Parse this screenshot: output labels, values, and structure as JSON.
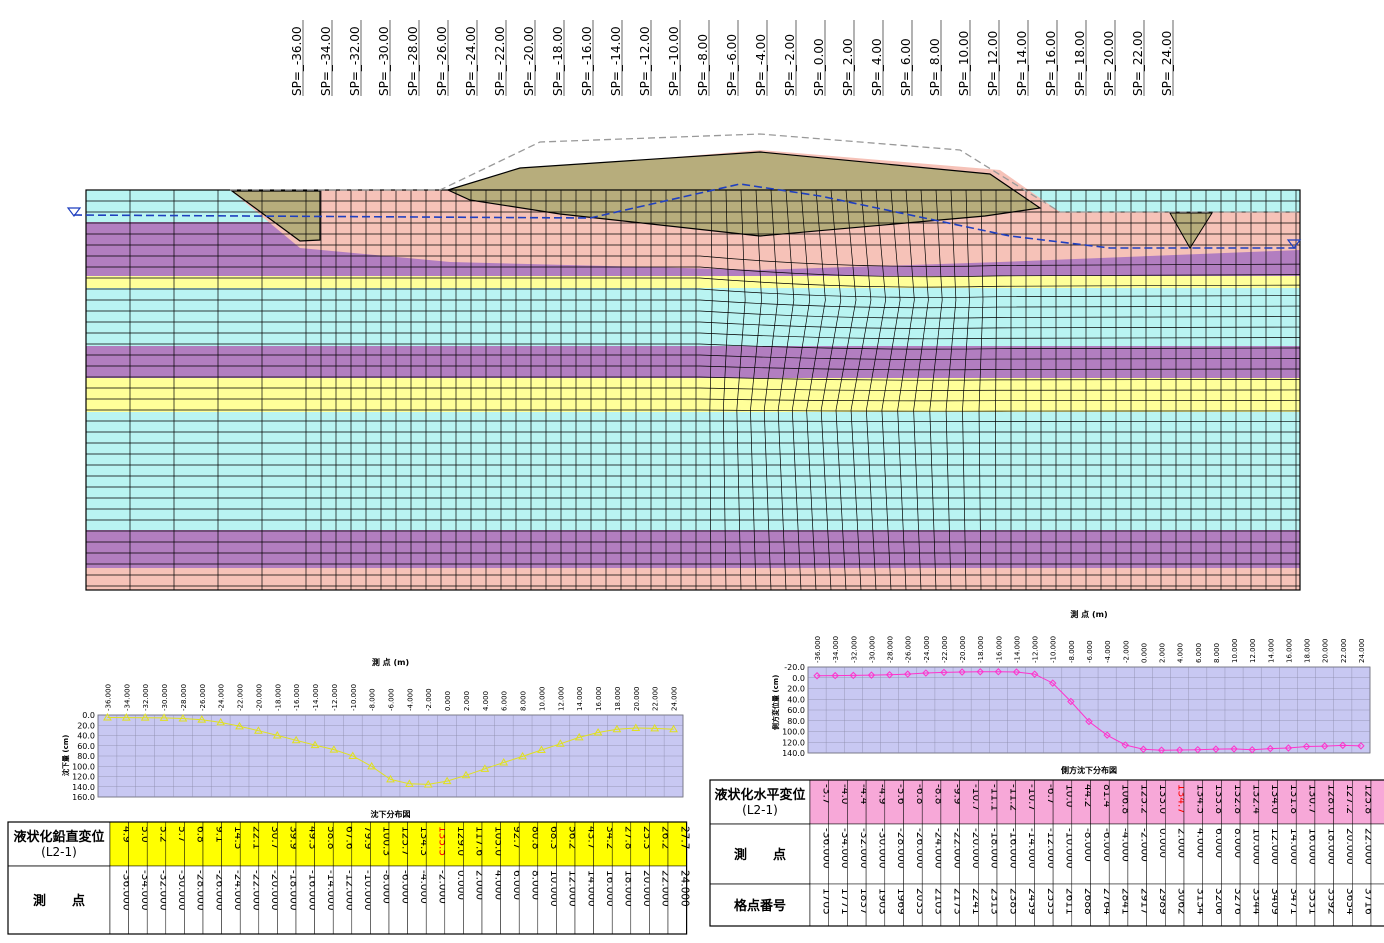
{
  "cross_section": {
    "sp_labels": [
      "SP=_-36.00",
      "SP=_-34.00",
      "SP=_-32.00",
      "SP=_-30.00",
      "SP=_-28.00",
      "SP=_-26.00",
      "SP=_-24.00",
      "SP=_-22.00",
      "SP=_-20.00",
      "SP=_-18.00",
      "SP=_-16.00",
      "SP=_-14.00",
      "SP=_-12.00",
      "SP=_-10.00",
      "SP=_-8.00",
      "SP=_-6.00",
      "SP=_-4.00",
      "SP=_-2.00",
      "SP=_0.00",
      "SP=_2.00",
      "SP=_4.00",
      "SP=_6.00",
      "SP=_8.00",
      "SP=_10.00",
      "SP=_12.00",
      "SP=_14.00",
      "SP=_16.00",
      "SP=_18.00",
      "SP=_20.00",
      "SP=_22.00",
      "SP=_24.00"
    ],
    "colors": {
      "cyan": "#b9f4f2",
      "purple": "#b27ec0",
      "yellow": "#ffff99",
      "pink": "#f6c2b8",
      "fill": "#b7ad7c",
      "water": "#1f3fbf"
    }
  },
  "chart_data": [
    {
      "type": "line",
      "title": "沈下分布図",
      "xlabel": "測 点 (m)",
      "ylabel": "沈下量 (cm)",
      "x": [
        -36,
        -34,
        -32,
        -30,
        -28,
        -26,
        -24,
        -22,
        -20,
        -18,
        -16,
        -14,
        -12,
        -10,
        -8,
        -6,
        -4,
        -2,
        0,
        2,
        4,
        6,
        8,
        10,
        12,
        14,
        16,
        18,
        20,
        22,
        24
      ],
      "x_tick_labels": [
        "-36.000",
        "-34.000",
        "-32.000",
        "-30.000",
        "-28.000",
        "-26.000",
        "-24.000",
        "-22.000",
        "-20.000",
        "-18.000",
        "-16.000",
        "-14.000",
        "-12.000",
        "-10.000",
        "-8.000",
        "-6.000",
        "-4.000",
        "-2.000",
        "0.000",
        "2.000",
        "4.000",
        "6.000",
        "8.000",
        "10.000",
        "12.000",
        "14.000",
        "16.000",
        "18.000",
        "20.000",
        "22.000",
        "24.000"
      ],
      "y_ticks": [
        "0.0",
        "20.0",
        "40.0",
        "60.0",
        "80.0",
        "100.0",
        "120.0",
        "140.0",
        "160.0"
      ],
      "ylim": [
        0,
        160
      ],
      "y_inverted": true,
      "series": [
        {
          "color": "#e0e020",
          "values": [
            4.9,
            5.0,
            5.2,
            5.7,
            6.8,
            9.1,
            14.5,
            22.1,
            30.7,
            39.9,
            49.3,
            58.8,
            67.6,
            79.9,
            100.3,
            125.7,
            134.3,
            135.5,
            129.0,
            117.6,
            105.0,
            92.7,
            80.8,
            68.3,
            56.2,
            43.7,
            34.2,
            27.8,
            25.3,
            26.2,
            27.7
          ]
        }
      ],
      "grid": true
    },
    {
      "type": "line",
      "title": "側方沈下分布図",
      "xlabel": "測 点 (m)",
      "ylabel": "側方変位量 (cm)",
      "x": [
        -36,
        -34,
        -32,
        -30,
        -28,
        -26,
        -24,
        -22,
        -20,
        -18,
        -16,
        -14,
        -12,
        -10,
        -8,
        -6,
        -4,
        -2,
        0,
        2,
        4,
        6,
        8,
        10,
        12,
        14,
        16,
        18,
        20,
        22,
        24
      ],
      "x_tick_labels": [
        "-36.000",
        "-34.000",
        "-32.000",
        "-30.000",
        "-28.000",
        "-26.000",
        "-24.000",
        "-22.000",
        "-20.000",
        "-18.000",
        "-16.000",
        "-14.000",
        "-12.000",
        "-10.000",
        "-8.000",
        "-6.000",
        "-4.000",
        "-2.000",
        "0.000",
        "2.000",
        "4.000",
        "6.000",
        "8.000",
        "10.000",
        "12.000",
        "14.000",
        "16.000",
        "18.000",
        "20.000",
        "22.000",
        "24.000"
      ],
      "y_ticks": [
        "-20.0",
        "0.0",
        "20.0",
        "40.0",
        "60.0",
        "80.0",
        "100.0",
        "120.0",
        "140.0"
      ],
      "ylim": [
        -20,
        140
      ],
      "y_inverted": true,
      "series": [
        {
          "color": "#ff33cc",
          "values": [
            -3.7,
            -4.0,
            -4.4,
            -4.9,
            -5.6,
            -6.8,
            -8.8,
            -9.9,
            -10.7,
            -11.1,
            -11.2,
            -10.7,
            -6.7,
            10.0,
            44.2,
            81.4,
            106.8,
            125.2,
            133.0,
            134.7,
            134.5,
            133.8,
            132.8,
            132.4,
            134.0,
            131.8,
            130.7,
            128.0,
            127.2,
            125.8,
            126.8
          ]
        }
      ],
      "grid": true
    }
  ],
  "table_vertical": {
    "header_row1_line1": "液状化鉛直変位",
    "header_row1_line2": "(L2-1)",
    "header_row2": "測　　点",
    "values": [
      "4.9",
      "5.0",
      "5.2",
      "5.7",
      "6.8",
      "9.1",
      "14.5",
      "22.1",
      "30.7",
      "39.9",
      "49.3",
      "58.8",
      "67.6",
      "79.9",
      "100.3",
      "125.7",
      "134.3",
      "135.5",
      "129.0",
      "117.6",
      "105.0",
      "92.7",
      "80.8",
      "68.3",
      "56.2",
      "43.7",
      "34.2",
      "27.8",
      "25.3",
      "26.2",
      "27.7"
    ],
    "stations": [
      "-36.000",
      "-34.000",
      "-32.000",
      "-30.000",
      "-28.000",
      "-26.000",
      "-24.000",
      "-22.000",
      "-20.000",
      "-18.000",
      "-16.000",
      "-14.000",
      "-12.000",
      "-10.000",
      "-8.000",
      "-6.000",
      "-4.000",
      "-2.000",
      "0.000",
      "2.000",
      "4.000",
      "6.000",
      "8.000",
      "10.000",
      "12.000",
      "14.000",
      "16.000",
      "18.000",
      "20.000",
      "22.000",
      "24.000"
    ],
    "max_index": 17,
    "bg": "#ffff00"
  },
  "table_horizontal": {
    "header_row1_line1": "液状化水平変位",
    "header_row1_line2": "(L2-1)",
    "header_row2": "測　　点",
    "header_row3": "格点番号",
    "values": [
      "-3.7",
      "-4.0",
      "-4.4",
      "-4.9",
      "-5.6",
      "-6.8",
      "-8.8",
      "-9.9",
      "-10.7",
      "-11.1",
      "-11.2",
      "-10.7",
      "-6.7",
      "10.0",
      "44.2",
      "81.4",
      "106.8",
      "125.2",
      "133.0",
      "134.7",
      "134.5",
      "133.8",
      "132.8",
      "132.4",
      "134.0",
      "131.8",
      "130.7",
      "128.0",
      "127.2",
      "125.8",
      "126.8"
    ],
    "stations": [
      "-36.000",
      "-34.000",
      "-32.000",
      "-30.000",
      "-28.000",
      "-26.000",
      "-24.000",
      "-22.000",
      "-20.000",
      "-18.000",
      "-16.000",
      "-14.000",
      "-12.000",
      "-10.000",
      "-8.000",
      "-6.000",
      "-4.000",
      "-2.000",
      "0.000",
      "2.000",
      "4.000",
      "6.000",
      "8.000",
      "10.000",
      "12.000",
      "14.000",
      "16.000",
      "18.000",
      "20.000",
      "22.000",
      "24.000"
    ],
    "nodes": [
      "1705",
      "1771",
      "1837",
      "1903",
      "1969",
      "2035",
      "2103",
      "2173",
      "2241",
      "2313",
      "2385",
      "2459",
      "2535",
      "2611",
      "2688",
      "2764",
      "2841",
      "2917",
      "2989",
      "3062",
      "3134",
      "3206",
      "3276",
      "3344",
      "3409",
      "3471",
      "3531",
      "3592",
      "3654",
      "3716",
      "3778"
    ],
    "max_index": 19,
    "bg": "#f7a8d8"
  }
}
